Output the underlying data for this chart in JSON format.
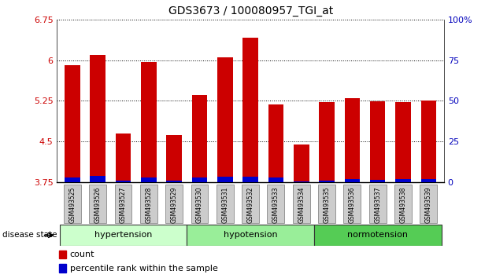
{
  "title": "GDS3673 / 100080957_TGI_at",
  "samples": [
    "GSM493525",
    "GSM493526",
    "GSM493527",
    "GSM493528",
    "GSM493529",
    "GSM493530",
    "GSM493531",
    "GSM493532",
    "GSM493533",
    "GSM493534",
    "GSM493535",
    "GSM493536",
    "GSM493537",
    "GSM493538",
    "GSM493539"
  ],
  "count_values": [
    5.9,
    6.1,
    4.65,
    5.97,
    4.62,
    5.35,
    6.05,
    6.42,
    5.18,
    4.45,
    5.22,
    5.3,
    5.24,
    5.22,
    5.26
  ],
  "percentile_values": [
    3.83,
    3.87,
    3.78,
    3.83,
    3.78,
    3.83,
    3.85,
    3.85,
    3.83,
    3.76,
    3.78,
    3.8,
    3.79,
    3.8,
    3.8
  ],
  "ymin": 3.75,
  "ymax": 6.75,
  "yticks": [
    3.75,
    4.5,
    5.25,
    6.0,
    6.75
  ],
  "ytick_labels": [
    "3.75",
    "4.5",
    "5.25",
    "6",
    "6.75"
  ],
  "right_yticks": [
    0,
    25,
    50,
    75,
    100
  ],
  "right_ytick_labels": [
    "0",
    "25",
    "50",
    "75",
    "100%"
  ],
  "groups": [
    {
      "label": "hypertension",
      "start": 0,
      "end": 5,
      "color": "#ccffcc"
    },
    {
      "label": "hypotension",
      "start": 5,
      "end": 10,
      "color": "#99ee99"
    },
    {
      "label": "normotension",
      "start": 10,
      "end": 15,
      "color": "#55cc55"
    }
  ],
  "bar_color_red": "#cc0000",
  "bar_color_blue": "#0000cc",
  "bar_width": 0.6,
  "legend_items": [
    "count",
    "percentile rank within the sample"
  ],
  "legend_colors": [
    "#cc0000",
    "#0000cc"
  ],
  "disease_state_label": "disease state",
  "title_color": "#000000",
  "ylabel_color": "#cc0000",
  "ylabel2_color": "#0000bb",
  "xtick_box_color": "#cccccc",
  "group_border_color": "#333333"
}
